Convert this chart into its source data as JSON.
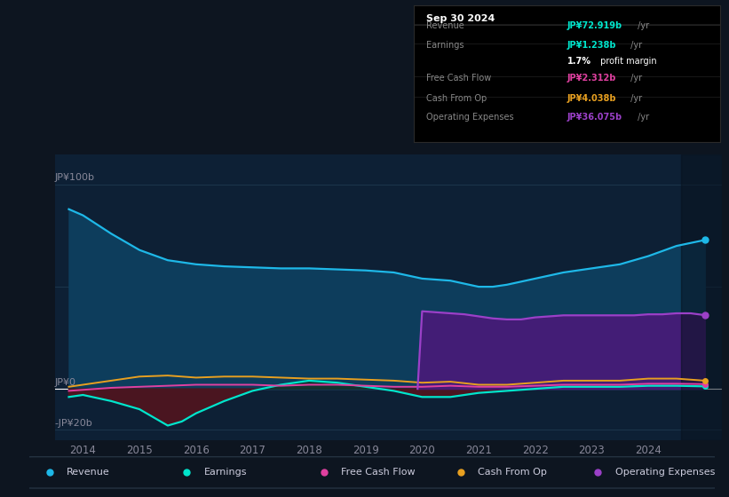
{
  "bg_color": "#0d1520",
  "plot_bg_color": "#0d2035",
  "title_box": {
    "date": "Sep 30 2024",
    "revenue_label": "Revenue",
    "revenue_val": "JP¥72.919b",
    "earnings_label": "Earnings",
    "earnings_val": "JP¥1.238b",
    "profit_margin": "1.7%",
    "profit_margin_text": " profit margin",
    "fcf_label": "Free Cash Flow",
    "fcf_val": "JP¥2.312b",
    "cfo_label": "Cash From Op",
    "cfo_val": "JP¥4.038b",
    "ope_label": "Operating Expenses",
    "ope_val": "JP¥36.075b"
  },
  "ylabel_top": "JP¥100b",
  "ylabel_zero": "JP¥0",
  "ylabel_neg": "-JP¥20b",
  "ylim": [
    -25,
    115
  ],
  "xlim": [
    2013.5,
    2025.3
  ],
  "xticks": [
    2014,
    2015,
    2016,
    2017,
    2018,
    2019,
    2020,
    2021,
    2022,
    2023,
    2024
  ],
  "revenue_x": [
    2013.75,
    2014.0,
    2014.5,
    2015.0,
    2015.5,
    2016.0,
    2016.5,
    2017.0,
    2017.5,
    2018.0,
    2018.5,
    2019.0,
    2019.5,
    2020.0,
    2020.5,
    2021.0,
    2021.25,
    2021.5,
    2022.0,
    2022.5,
    2023.0,
    2023.5,
    2024.0,
    2024.5,
    2025.0
  ],
  "revenue_y": [
    88,
    85,
    76,
    68,
    63,
    61,
    60,
    59.5,
    59,
    59,
    58.5,
    58,
    57,
    54,
    53,
    50,
    50,
    51,
    54,
    57,
    59,
    61,
    65,
    70,
    72.9
  ],
  "earnings_x": [
    2013.75,
    2014.0,
    2014.5,
    2015.0,
    2015.25,
    2015.5,
    2015.75,
    2016.0,
    2016.5,
    2017.0,
    2017.5,
    2018.0,
    2018.5,
    2019.0,
    2019.5,
    2020.0,
    2020.5,
    2021.0,
    2021.5,
    2022.0,
    2022.5,
    2023.0,
    2023.5,
    2024.0,
    2024.5,
    2025.0
  ],
  "earnings_y": [
    -4,
    -3,
    -6,
    -10,
    -14,
    -18,
    -16,
    -12,
    -6,
    -1,
    2,
    4,
    3,
    1,
    -1,
    -4,
    -4,
    -2,
    -1,
    0,
    1,
    1,
    1,
    1.5,
    1.5,
    1.2
  ],
  "fcf_x": [
    2013.75,
    2014.0,
    2014.5,
    2015.0,
    2015.5,
    2016.0,
    2016.5,
    2017.0,
    2017.5,
    2018.0,
    2018.5,
    2019.0,
    2019.5,
    2020.0,
    2020.5,
    2021.0,
    2021.5,
    2022.0,
    2022.5,
    2023.0,
    2023.5,
    2024.0,
    2024.5,
    2025.0
  ],
  "fcf_y": [
    -1,
    -0.5,
    0.5,
    1,
    1.5,
    2,
    2,
    2,
    1.5,
    2,
    2,
    1.5,
    1,
    1,
    1.5,
    1,
    1,
    1.5,
    2,
    2,
    2,
    2.5,
    2.5,
    2.3
  ],
  "cfo_x": [
    2013.75,
    2014.0,
    2014.5,
    2015.0,
    2015.5,
    2016.0,
    2016.5,
    2017.0,
    2017.5,
    2018.0,
    2018.5,
    2019.0,
    2019.5,
    2020.0,
    2020.5,
    2021.0,
    2021.5,
    2022.0,
    2022.5,
    2023.0,
    2023.5,
    2024.0,
    2024.5,
    2025.0
  ],
  "cfo_y": [
    1,
    2,
    4,
    6,
    6.5,
    5.5,
    6,
    6,
    5.5,
    5,
    5,
    4.5,
    4,
    3,
    3.5,
    2,
    2,
    3,
    4,
    4,
    4,
    5,
    5,
    4.0
  ],
  "ope_x": [
    2019.92,
    2020.0,
    2020.25,
    2020.5,
    2020.75,
    2021.0,
    2021.25,
    2021.5,
    2021.75,
    2022.0,
    2022.25,
    2022.5,
    2022.75,
    2023.0,
    2023.25,
    2023.5,
    2023.75,
    2024.0,
    2024.25,
    2024.5,
    2024.75,
    2025.0
  ],
  "ope_y": [
    0,
    38,
    37.5,
    37,
    36.5,
    35.5,
    34.5,
    34,
    34,
    35,
    35.5,
    36,
    36,
    36,
    36,
    36,
    36,
    36.5,
    36.5,
    37,
    37,
    36.1
  ],
  "colors": {
    "revenue": "#1eb8e8",
    "earnings": "#00e5cc",
    "fcf": "#e040a0",
    "cfo": "#e8a020",
    "ope": "#9b40c8",
    "revenue_fill": "#0d3d5c",
    "earnings_fill_neg": "#4a1520",
    "earnings_fill_pos": "#153020",
    "ope_fill": "#4a1a7a",
    "future_overlay": "#08121e"
  },
  "future_start": 2024.58,
  "grid_color": "#1e3a50",
  "zero_line_color": "#ffffff",
  "tick_color": "#888899",
  "legend_items": [
    {
      "label": "Revenue",
      "color": "#1eb8e8"
    },
    {
      "label": "Earnings",
      "color": "#00e5cc"
    },
    {
      "label": "Free Cash Flow",
      "color": "#e040a0"
    },
    {
      "label": "Cash From Op",
      "color": "#e8a020"
    },
    {
      "label": "Operating Expenses",
      "color": "#9b40c8"
    }
  ]
}
